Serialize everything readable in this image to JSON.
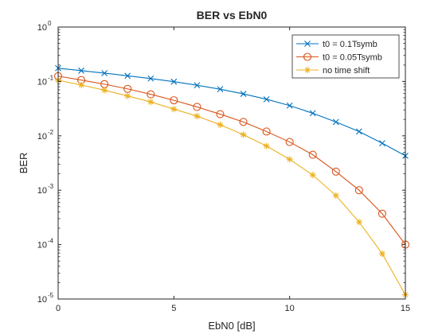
{
  "chart_data": {
    "type": "line",
    "title": "BER vs EbN0",
    "xlabel": "EbN0 [dB]",
    "ylabel": "BER",
    "xlim": [
      0,
      15
    ],
    "ylim": [
      1e-05,
      1
    ],
    "yscale": "log",
    "grid": false,
    "legend_position": "top-right",
    "x_ticks": [
      0,
      5,
      10,
      15
    ],
    "x_tick_labels": [
      "0",
      "5",
      "10",
      "15"
    ],
    "y_ticks": [
      1e-05,
      0.0001,
      0.001,
      0.01,
      0.1,
      1
    ],
    "y_tick_labels": [
      {
        "base": "10",
        "exp": "-5"
      },
      {
        "base": "10",
        "exp": "-4"
      },
      {
        "base": "10",
        "exp": "-3"
      },
      {
        "base": "10",
        "exp": "-2"
      },
      {
        "base": "10",
        "exp": "-1"
      },
      {
        "base": "10",
        "exp": "0"
      }
    ],
    "x": [
      0,
      1,
      2,
      3,
      4,
      5,
      6,
      7,
      8,
      9,
      10,
      11,
      12,
      13,
      14,
      15
    ],
    "series": [
      {
        "name": "t0 = 0.1Tsymb",
        "color": "#0072BD",
        "marker": "x",
        "values": [
          0.175,
          0.158,
          0.142,
          0.127,
          0.113,
          0.099,
          0.085,
          0.072,
          0.059,
          0.047,
          0.036,
          0.026,
          0.018,
          0.012,
          0.0073,
          0.0043
        ]
      },
      {
        "name": "t0 = 0.05Tsymb",
        "color": "#D95319",
        "marker": "o",
        "values": [
          0.125,
          0.106,
          0.089,
          0.073,
          0.058,
          0.045,
          0.034,
          0.025,
          0.018,
          0.012,
          0.0077,
          0.0045,
          0.0022,
          0.001,
          0.00037,
          0.0001
        ]
      },
      {
        "name": "no time shift",
        "color": "#EDB120",
        "marker": "*",
        "values": [
          0.105,
          0.086,
          0.069,
          0.054,
          0.042,
          0.031,
          0.023,
          0.016,
          0.0105,
          0.0065,
          0.0037,
          0.0019,
          0.0008,
          0.00026,
          6.8e-05,
          1.2e-05
        ]
      }
    ]
  }
}
